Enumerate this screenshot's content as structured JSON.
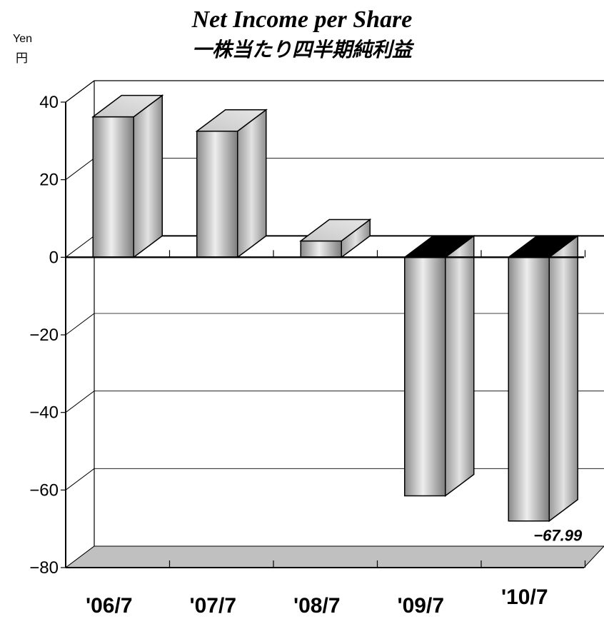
{
  "chart_data": {
    "type": "bar",
    "title": "Net Income per Share",
    "subtitle": "一株当たり四半期純利益",
    "unit_label": "Yen",
    "unit_label_jp": "円",
    "categories": [
      "'06/7",
      "'07/7",
      "'08/7",
      "'09/7",
      "'10/7"
    ],
    "values": [
      36.2,
      32.5,
      4.2,
      -61.5,
      -67.99
    ],
    "ylim": [
      -80,
      40
    ],
    "yticks": [
      40,
      20,
      0,
      -20,
      -40,
      -60,
      -80
    ],
    "ytick_labels": [
      "40",
      "20",
      "0",
      "−20",
      "−40",
      "−60",
      "−80"
    ],
    "data_labels": [
      null,
      null,
      null,
      null,
      "−67.99"
    ],
    "grid": true,
    "three_d": true,
    "colors": {
      "bar": "#b8b8b8",
      "top_negative": "#000000",
      "floor": "#c0c0c0",
      "background": "#ffffff"
    }
  }
}
